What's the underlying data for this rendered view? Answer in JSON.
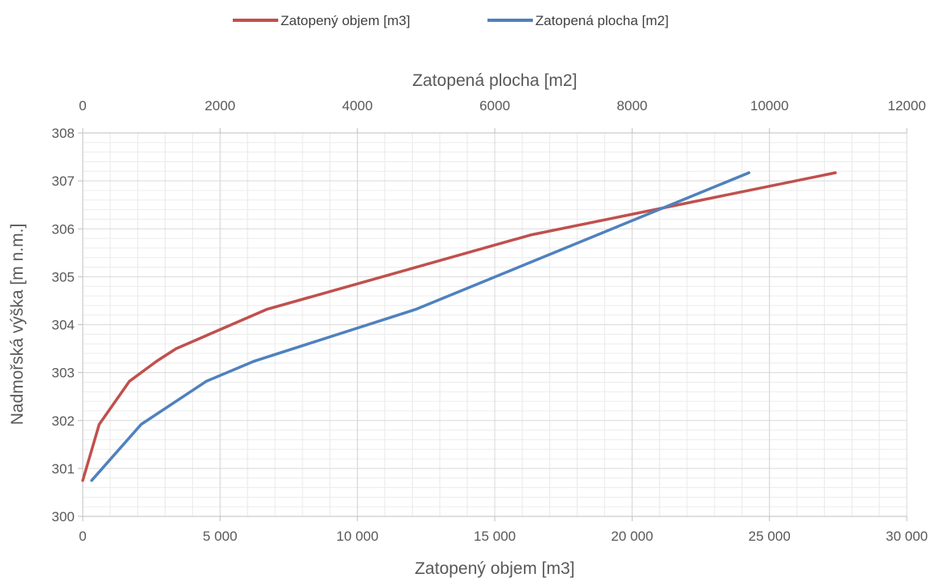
{
  "chart_data": {
    "type": "line",
    "title": "",
    "legend": {
      "position": "top",
      "entries": [
        "Zatopený objem [m3]",
        "Zatopená plocha [m2]"
      ]
    },
    "y_axis": {
      "label": "Nadmořská výška [m n.m.]",
      "range": [
        300,
        308
      ],
      "ticks": [
        300,
        301,
        302,
        303,
        304,
        305,
        306,
        307,
        308
      ],
      "tick_labels": [
        "300",
        "301",
        "302",
        "303",
        "304",
        "305",
        "306",
        "307",
        "308"
      ]
    },
    "x_axis_bottom": {
      "label": "Zatopený objem [m3]",
      "range": [
        0,
        30000
      ],
      "ticks": [
        0,
        5000,
        10000,
        15000,
        20000,
        25000,
        30000
      ],
      "tick_labels": [
        "0",
        "5 000",
        "10 000",
        "15 000",
        "20 000",
        "25 000",
        "30 000"
      ]
    },
    "x_axis_top": {
      "label": "Zatopená plocha [m2]",
      "range": [
        0,
        12000
      ],
      "ticks": [
        0,
        2000,
        4000,
        6000,
        8000,
        10000,
        12000
      ],
      "tick_labels": [
        "0",
        "2000",
        "4000",
        "6000",
        "8000",
        "10000",
        "12000"
      ]
    },
    "grid": true,
    "series": [
      {
        "name": "Zatopený objem [m3]",
        "axis": "bottom",
        "color": "#c0504d",
        "points": [
          [
            0,
            300.75
          ],
          [
            600,
            301.92
          ],
          [
            1700,
            302.82
          ],
          [
            2700,
            303.24
          ],
          [
            3400,
            303.5
          ],
          [
            6700,
            304.32
          ],
          [
            16300,
            305.87
          ],
          [
            27400,
            307.17
          ]
        ]
      },
      {
        "name": "Zatopená plocha [m2]",
        "axis": "top",
        "color": "#4f81bd",
        "points": [
          [
            130,
            300.75
          ],
          [
            850,
            301.92
          ],
          [
            1800,
            302.82
          ],
          [
            2500,
            303.24
          ],
          [
            4850,
            304.32
          ],
          [
            9700,
            307.17
          ]
        ]
      }
    ]
  }
}
